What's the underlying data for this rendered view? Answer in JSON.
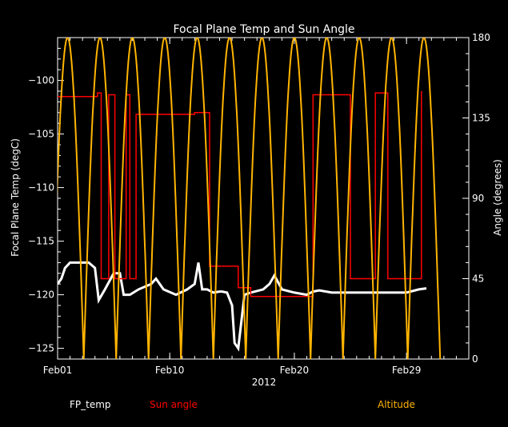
{
  "chart_data": {
    "type": "line",
    "title": "Focal Plane Temp and Sun Angle",
    "xlabel": "2012",
    "ylabel_left": "Focal Plane Temp (degC)",
    "ylabel_right": "Angle (degrees)",
    "x_domain_days": [
      0,
      33
    ],
    "x_ticks": [
      {
        "day": 0,
        "label": "Feb01"
      },
      {
        "day": 9,
        "label": "Feb10"
      },
      {
        "day": 19,
        "label": "Feb20"
      },
      {
        "day": 28,
        "label": "Feb29"
      }
    ],
    "ylim_left": [
      -126,
      -96
    ],
    "y_ticks_left": [
      -100,
      -105,
      -110,
      -115,
      -120,
      -125
    ],
    "ylim_right": [
      0,
      180
    ],
    "y_ticks_right": [
      0,
      45,
      90,
      135,
      180
    ],
    "legend": [
      "FP_temp",
      "Sun angle",
      "Altitude"
    ],
    "colors": {
      "fp_temp": "#ffffff",
      "sun_angle": "#ff0000",
      "altitude": "#ffb400",
      "axes": "#ffffff"
    },
    "series": [
      {
        "name": "FP_temp",
        "axis": "left",
        "x": [
          0,
          0.3,
          0.6,
          1,
          1.5,
          2,
          2.5,
          3,
          3.3,
          3.8,
          4.5,
          5,
          5.3,
          5.8,
          6.5,
          7.5,
          7.9,
          8.5,
          9.5,
          10.4,
          11,
          11.3,
          11.6,
          12,
          12.5,
          13,
          13.2,
          13.6,
          14,
          14.2,
          14.5,
          15,
          15.5,
          16.5,
          17,
          17.4,
          18,
          19,
          20,
          20.5,
          21,
          22,
          23,
          24,
          25,
          26,
          27,
          28,
          29,
          29.6
        ],
        "y": [
          -119,
          -118.5,
          -117.5,
          -117,
          -117,
          -117,
          -117,
          -117.5,
          -120.5,
          -119.5,
          -118,
          -118,
          -120,
          -120,
          -119.5,
          -119,
          -118.5,
          -119.5,
          -120,
          -119.5,
          -119,
          -117,
          -119.5,
          -119.5,
          -119.8,
          -119.7,
          -119.7,
          -119.8,
          -121,
          -124.5,
          -125,
          -120,
          -119.8,
          -119.5,
          -119,
          -118.2,
          -119.5,
          -119.8,
          -120,
          -119.7,
          -119.6,
          -119.8,
          -119.8,
          -119.8,
          -119.8,
          -119.8,
          -119.8,
          -119.8,
          -119.5,
          -119.4
        ]
      },
      {
        "name": "Sun angle",
        "axis": "right",
        "x": [
          0,
          1.5,
          3.2,
          3.5,
          3.7,
          4.1,
          4.6,
          5.2,
          5.5,
          5.8,
          6.3,
          6.8,
          7.5,
          8.3,
          9.5,
          10.5,
          11,
          11.5,
          12.2,
          13.5,
          14.5,
          15.5,
          16.3,
          17.5,
          19.5,
          20.5,
          21.5,
          22.5,
          23.5,
          24.5,
          25.5,
          26.5,
          27.5,
          28.5,
          29.2
        ],
        "y": [
          147,
          147,
          149,
          45,
          45,
          148,
          45,
          45,
          148,
          45,
          137,
          137,
          137,
          137,
          137,
          137,
          138,
          138,
          52,
          52,
          40,
          35,
          35,
          35,
          35,
          148,
          148,
          148,
          45,
          45,
          149,
          45,
          45,
          45,
          150
        ]
      },
      {
        "name": "Altitude",
        "axis": "right",
        "peaks": [
          0.8,
          3.4,
          6.0,
          8.6,
          11.2,
          13.8,
          16.4,
          19.0,
          21.6,
          24.2,
          26.8,
          29.4
        ],
        "peak_value": 180,
        "minimum_value": 0
      }
    ]
  }
}
